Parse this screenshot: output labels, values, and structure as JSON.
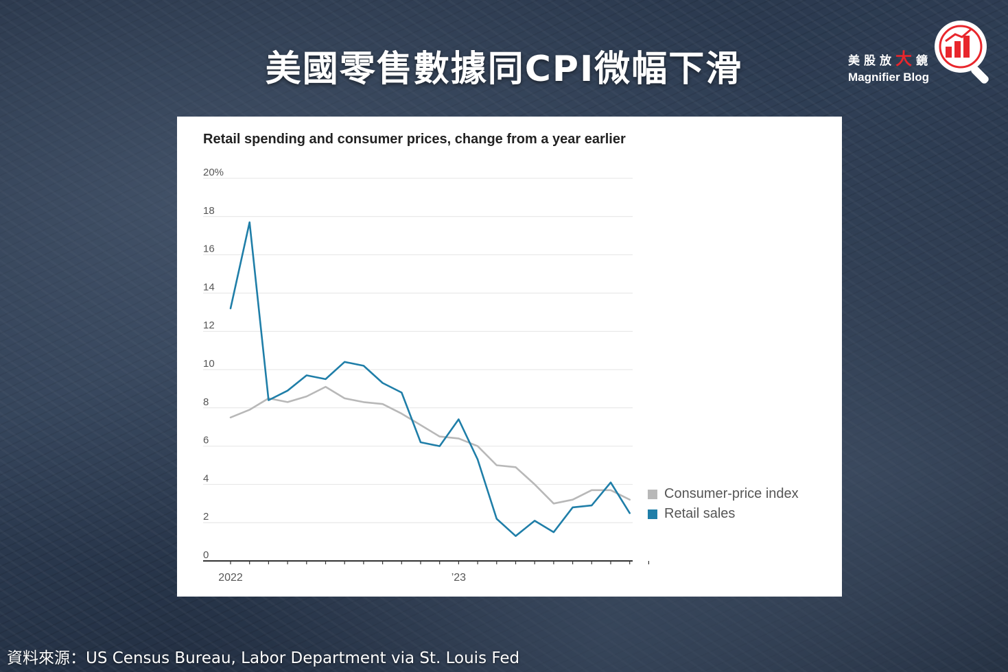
{
  "header": {
    "title": "美國零售數據同CPI微幅下滑",
    "brand_cn_prefix": "美股放",
    "brand_cn_big": "大",
    "brand_cn_suffix": "鏡",
    "brand_en": "Magnifier Blog",
    "logo_icon": "magnifier-bar-chart-icon"
  },
  "colors": {
    "cpi": "#b8b8b8",
    "retail": "#1f7ea8",
    "brand_red": "#e8262c"
  },
  "chart_data": {
    "type": "line",
    "title": "Retail spending and consumer prices, change from a year earlier",
    "xlabel": "",
    "ylabel": "",
    "ylim": [
      0,
      20
    ],
    "yticks": [
      0,
      2,
      4,
      6,
      8,
      10,
      12,
      14,
      16,
      18,
      20
    ],
    "ytick_labels": [
      "0",
      "2",
      "4",
      "6",
      "8",
      "10",
      "12",
      "14",
      "16",
      "18",
      "20%"
    ],
    "x": [
      "2022-01",
      "2022-02",
      "2022-03",
      "2022-04",
      "2022-05",
      "2022-06",
      "2022-07",
      "2022-08",
      "2022-09",
      "2022-10",
      "2022-11",
      "2022-12",
      "2023-01",
      "2023-02",
      "2023-03",
      "2023-04",
      "2023-05",
      "2023-06",
      "2023-07",
      "2023-08",
      "2023-09",
      "2023-10",
      "2023-11"
    ],
    "xtick_labels": [
      {
        "at": "2022-01",
        "label": "2022"
      },
      {
        "at": "2023-01",
        "label": "’23"
      }
    ],
    "grid": true,
    "legend_position": "right",
    "series": [
      {
        "name": "Consumer-price index",
        "color_key": "cpi",
        "values": [
          7.5,
          7.9,
          8.5,
          8.3,
          8.6,
          9.1,
          8.5,
          8.3,
          8.2,
          7.7,
          7.1,
          6.5,
          6.4,
          6.0,
          5.0,
          4.9,
          4.0,
          3.0,
          3.2,
          3.7,
          3.7,
          3.2,
          null
        ]
      },
      {
        "name": "Retail sales",
        "color_key": "retail",
        "values": [
          13.2,
          17.7,
          8.4,
          8.9,
          9.7,
          9.5,
          10.4,
          10.2,
          9.3,
          8.8,
          6.2,
          6.0,
          7.4,
          5.3,
          2.2,
          1.3,
          2.1,
          1.5,
          2.8,
          2.9,
          4.1,
          2.5,
          null
        ]
      }
    ]
  },
  "footer": {
    "source": "資料來源：US Census Bureau, Labor Department via St. Louis Fed"
  }
}
